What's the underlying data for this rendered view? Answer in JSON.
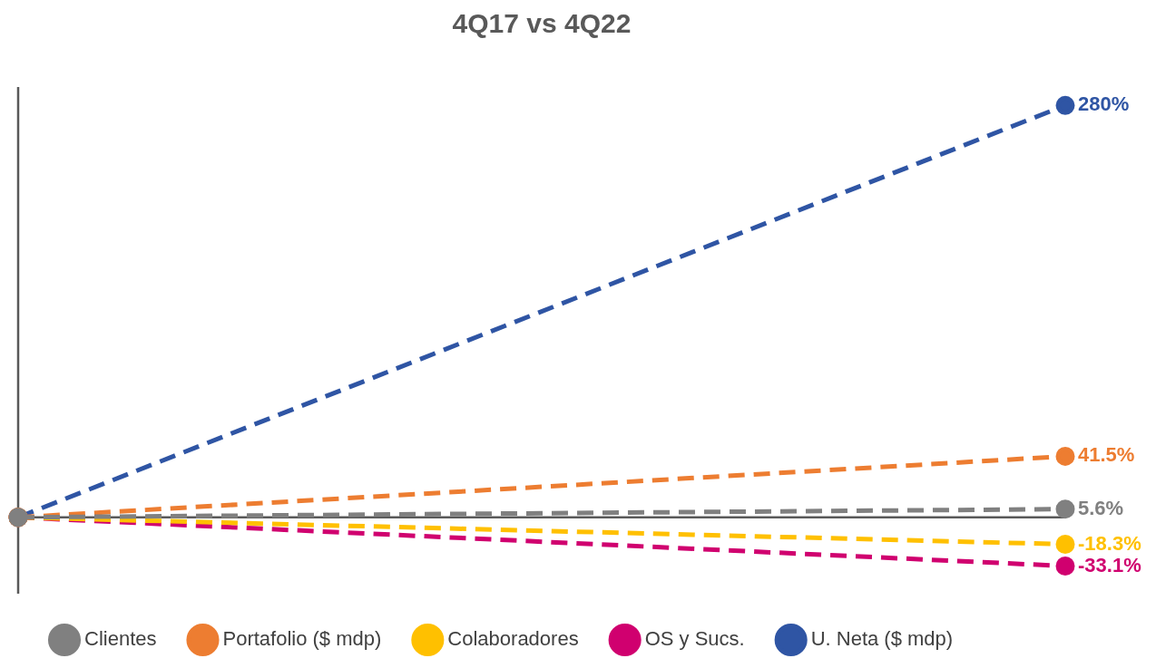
{
  "chart_data": {
    "type": "line",
    "title": "4Q17 vs 4Q22",
    "categories": [
      null,
      null
    ],
    "marker": "circle",
    "line_style": "dashed",
    "legend": "bottom",
    "grid": false,
    "tick_labels": false,
    "ref_lines": [
      {
        "axis": "y",
        "value": 0,
        "color": "#595959"
      }
    ],
    "series": [
      {
        "name": "Clientes",
        "color": "#808080",
        "values": [
          0,
          5.6
        ],
        "value_labels": [
          null,
          "5.6%"
        ]
      },
      {
        "name": "Portafolio ($ mdp)",
        "color": "#ed7d31",
        "values": [
          0,
          41.5
        ],
        "value_labels": [
          null,
          "41.5%"
        ]
      },
      {
        "name": "Colaboradores",
        "color": "#ffc000",
        "values": [
          0,
          -18.3
        ],
        "value_labels": [
          null,
          "-18.3%"
        ]
      },
      {
        "name": "OS y Sucs.",
        "color": "#d0006f",
        "values": [
          0,
          -33.1
        ],
        "value_labels": [
          null,
          "-33.1%"
        ]
      },
      {
        "name": "U. Neta ($ mdp)",
        "color": "#2f55a4",
        "values": [
          0,
          280
        ],
        "value_labels": [
          null,
          "280%"
        ]
      }
    ]
  }
}
